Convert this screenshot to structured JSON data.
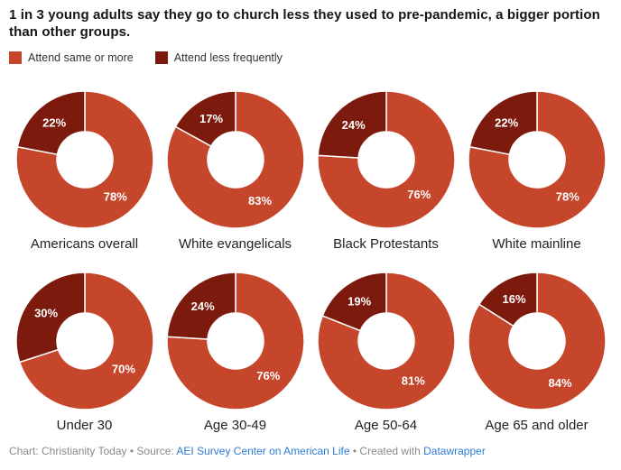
{
  "title": "1 in 3 young adults say they go to church less they used to pre-pandemic, a bigger portion than other groups.",
  "legend": {
    "items": [
      {
        "label": "Attend same or more",
        "color": "#c6462b"
      },
      {
        "label": "Attend less frequently",
        "color": "#7d1a0e"
      }
    ]
  },
  "chart_data": {
    "type": "pie",
    "subtype": "donut-small-multiples",
    "title": "1 in 3 young adults say they go to church less they used to pre-pandemic, a bigger portion than other groups.",
    "legend_position": "top",
    "series_names": [
      "Attend same or more",
      "Attend less frequently"
    ],
    "colors": {
      "same_or_more": "#c6462b",
      "less_frequently": "#7d1a0e"
    },
    "value_label_format": "{value}%",
    "charts": [
      {
        "label": "Americans overall",
        "same_or_more": 78,
        "less_frequently": 22
      },
      {
        "label": "White evangelicals",
        "same_or_more": 83,
        "less_frequently": 17
      },
      {
        "label": "Black Protestants",
        "same_or_more": 76,
        "less_frequently": 24
      },
      {
        "label": "White mainline",
        "same_or_more": 78,
        "less_frequently": 22
      },
      {
        "label": "Under 30",
        "same_or_more": 70,
        "less_frequently": 30
      },
      {
        "label": "Age 30-49",
        "same_or_more": 76,
        "less_frequently": 24
      },
      {
        "label": "Age 50-64",
        "same_or_more": 81,
        "less_frequently": 19
      },
      {
        "label": "Age 65 and older",
        "same_or_more": 84,
        "less_frequently": 16
      }
    ]
  },
  "footer": {
    "chart_credit": "Chart: Christianity Today",
    "separator": "•",
    "source_label": "Source:",
    "source_link": "AEI Survey Center on American Life",
    "created_with": "Created with",
    "tool_link": "Datawrapper",
    "text_color": "#8a8a8a",
    "link_color": "#2e7cd6"
  }
}
